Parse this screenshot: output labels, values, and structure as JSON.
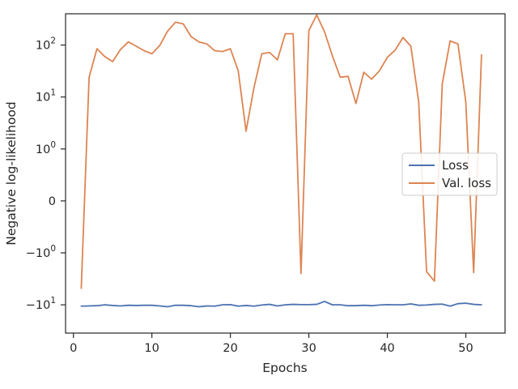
{
  "chart_data": {
    "type": "line",
    "title": "",
    "xlabel": "Epochs",
    "ylabel": "Negative log-likelihood",
    "y_scale": "symlog",
    "xlim": [
      -1,
      55
    ],
    "ylim": [
      -35,
      400
    ],
    "x_ticks": [
      0,
      10,
      20,
      30,
      40,
      50
    ],
    "x_tick_labels": [
      "0",
      "10",
      "20",
      "30",
      "40",
      "50"
    ],
    "y_ticks": [
      100,
      10,
      1,
      0,
      -1,
      -10
    ],
    "y_tick_labels": [
      {
        "base": "10",
        "exp": "2"
      },
      {
        "base": "10",
        "exp": "1"
      },
      {
        "base": "10",
        "exp": "0"
      },
      {
        "base": "0",
        "exp": ""
      },
      {
        "base": "−10",
        "exp": "0"
      },
      {
        "base": "−10",
        "exp": "1"
      }
    ],
    "grid": false,
    "legend_position": "center-right",
    "series": [
      {
        "name": "Loss",
        "color": "#4c72b0",
        "x": [
          1,
          2,
          3,
          4,
          5,
          6,
          7,
          8,
          9,
          10,
          11,
          12,
          13,
          14,
          15,
          16,
          17,
          18,
          19,
          20,
          21,
          22,
          23,
          24,
          25,
          26,
          27,
          28,
          29,
          30,
          31,
          32,
          33,
          34,
          35,
          36,
          37,
          38,
          39,
          40,
          41,
          42,
          43,
          44,
          45,
          46,
          47,
          48,
          49,
          50,
          51,
          52
        ],
        "values": [
          -10.6,
          -10.5,
          -10.4,
          -10.0,
          -10.3,
          -10.5,
          -10.2,
          -10.3,
          -10.2,
          -10.2,
          -10.5,
          -10.9,
          -10.2,
          -10.2,
          -10.4,
          -10.9,
          -10.5,
          -10.6,
          -10.0,
          -9.9,
          -10.6,
          -10.3,
          -10.6,
          -10.1,
          -9.8,
          -10.5,
          -10.0,
          -9.8,
          -9.9,
          -9.9,
          -9.8,
          -8.6,
          -10.0,
          -10.0,
          -10.4,
          -10.4,
          -10.2,
          -10.4,
          -10.1,
          -9.9,
          -10.0,
          -10.0,
          -9.6,
          -10.2,
          -10.1,
          -9.8,
          -9.7,
          -10.6,
          -9.5,
          -9.3,
          -9.8,
          -10.0
        ]
      },
      {
        "name": "Val. loss",
        "color": "#dd8452",
        "x": [
          1,
          2,
          3,
          4,
          5,
          6,
          7,
          8,
          9,
          10,
          11,
          12,
          13,
          14,
          15,
          16,
          17,
          18,
          19,
          20,
          21,
          22,
          23,
          24,
          25,
          26,
          27,
          28,
          29,
          30,
          31,
          32,
          33,
          34,
          35,
          36,
          37,
          38,
          39,
          40,
          41,
          42,
          43,
          44,
          45,
          46,
          47,
          48,
          49,
          50,
          51,
          52
        ],
        "values": [
          -4.8,
          24,
          85,
          60,
          48,
          82,
          115,
          95,
          78,
          68,
          98,
          185,
          275,
          255,
          145,
          115,
          105,
          78,
          75,
          85,
          32,
          2.2,
          15,
          68,
          72,
          52,
          165,
          165,
          -2.5,
          190,
          380,
          180,
          62,
          24,
          25,
          7.5,
          30,
          22,
          32,
          58,
          80,
          140,
          95,
          8,
          -2.3,
          -3.5,
          18,
          120,
          105,
          8,
          -2.4,
          65
        ]
      }
    ]
  }
}
